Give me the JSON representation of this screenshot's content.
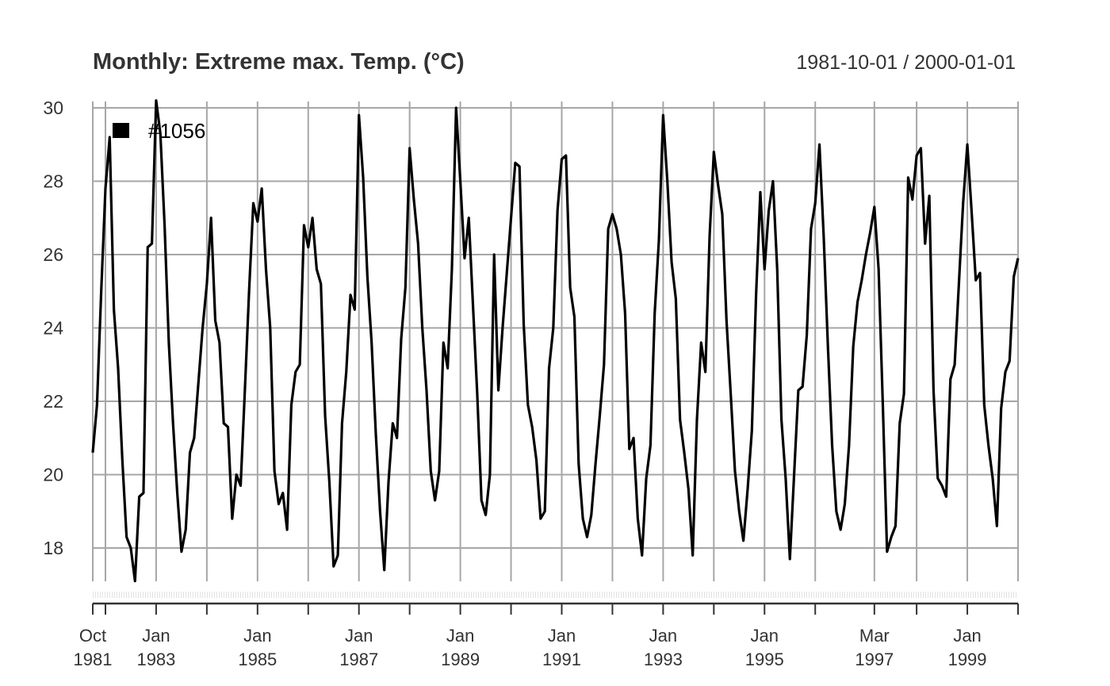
{
  "chart_data": {
    "type": "line",
    "title": "Monthly: Extreme max. Temp. (°C)",
    "date_range_label": "1981-10-01 / 2000-01-01",
    "x_start": "1981-10",
    "x_end": "2000-01",
    "xlim": [
      "1981-10",
      "2000-01"
    ],
    "ylim": [
      17,
      30
    ],
    "yticks": [
      18,
      20,
      22,
      24,
      26,
      28,
      30
    ],
    "xticks": [
      {
        "date": "1981-10",
        "label_top": "Oct",
        "label_bottom": "1981"
      },
      {
        "date": "1983-01",
        "label_top": "Jan",
        "label_bottom": "1983"
      },
      {
        "date": "1985-01",
        "label_top": "Jan",
        "label_bottom": "1985"
      },
      {
        "date": "1987-01",
        "label_top": "Jan",
        "label_bottom": "1987"
      },
      {
        "date": "1989-01",
        "label_top": "Jan",
        "label_bottom": "1989"
      },
      {
        "date": "1991-01",
        "label_top": "Jan",
        "label_bottom": "1991"
      },
      {
        "date": "1993-01",
        "label_top": "Jan",
        "label_bottom": "1993"
      },
      {
        "date": "1995-01",
        "label_top": "Jan",
        "label_bottom": "1995"
      },
      {
        "date": "1997-03",
        "label_top": "Mar",
        "label_bottom": "1997"
      },
      {
        "date": "1999-01",
        "label_top": "Jan",
        "label_bottom": "1999"
      }
    ],
    "grid_dates": [
      "1981-10",
      "1982-01",
      "1983-01",
      "1984-01",
      "1985-01",
      "1986-01",
      "1987-01",
      "1988-01",
      "1989-01",
      "1990-01",
      "1991-01",
      "1992-01",
      "1993-01",
      "1994-01",
      "1995-01",
      "1996-01",
      "1997-03",
      "1998-01",
      "1999-01",
      "2000-01"
    ],
    "legend_position": "top-left",
    "grid": true,
    "series": [
      {
        "name": "#1056",
        "color": "#000000",
        "values": [
          20.6,
          21.9,
          25.0,
          27.8,
          29.2,
          24.5,
          22.9,
          20.4,
          18.3,
          18.0,
          17.1,
          19.4,
          19.5,
          26.2,
          26.3,
          30.2,
          29.3,
          26.8,
          23.6,
          21.4,
          19.5,
          17.9,
          18.5,
          20.6,
          21.0,
          22.5,
          24.0,
          25.2,
          27.0,
          24.2,
          23.6,
          21.4,
          21.3,
          18.8,
          20.0,
          19.7,
          22.3,
          25.0,
          27.4,
          26.9,
          27.8,
          25.6,
          24.0,
          20.1,
          19.2,
          19.5,
          18.5,
          21.9,
          22.8,
          23.0,
          26.8,
          26.2,
          27.0,
          25.6,
          25.2,
          21.6,
          19.8,
          17.5,
          17.8,
          21.4,
          22.8,
          24.9,
          24.5,
          29.8,
          28.1,
          25.4,
          23.6,
          21.1,
          19.0,
          17.4,
          19.8,
          21.4,
          21.0,
          23.7,
          25.1,
          28.9,
          27.5,
          26.3,
          24.0,
          22.3,
          20.1,
          19.3,
          20.1,
          23.6,
          22.9,
          25.6,
          30.0,
          28.0,
          25.9,
          27.0,
          24.6,
          22.2,
          19.3,
          18.9,
          20.0,
          26.0,
          22.3,
          24.0,
          25.5,
          27.0,
          28.5,
          28.4,
          24.1,
          21.9,
          21.3,
          20.4,
          18.8,
          19.0,
          22.9,
          24.0,
          27.2,
          28.6,
          28.7,
          25.1,
          24.3,
          20.3,
          18.8,
          18.3,
          18.9,
          20.3,
          21.6,
          23.0,
          26.7,
          27.1,
          26.7,
          26.0,
          24.4,
          20.7,
          21.0,
          18.8,
          17.8,
          19.9,
          20.8,
          24.4,
          26.4,
          29.8,
          28.0,
          25.8,
          24.8,
          21.5,
          20.6,
          19.6,
          17.8,
          21.5,
          23.6,
          22.8,
          26.5,
          28.8,
          27.9,
          27.1,
          24.2,
          22.2,
          20.1,
          19.0,
          18.2,
          19.6,
          21.2,
          24.9,
          27.7,
          25.6,
          27.2,
          28.0,
          25.6,
          21.5,
          19.9,
          17.7,
          20.0,
          22.3,
          22.4,
          23.8,
          26.7,
          27.4,
          29.0,
          26.5,
          23.5,
          20.8,
          19.0,
          18.5,
          19.2,
          20.8,
          23.5,
          24.7,
          25.3,
          26.0,
          26.6,
          27.3,
          25.6,
          21.9,
          17.9,
          18.3,
          18.6,
          21.4,
          22.2,
          28.1,
          27.5,
          28.7,
          28.9,
          26.3,
          27.6,
          22.3,
          19.9,
          19.7,
          19.4,
          22.6,
          23.0,
          25.2,
          27.4,
          29.0,
          27.2,
          25.3,
          25.5,
          21.9,
          20.8,
          19.9,
          18.6,
          21.8,
          22.8,
          23.1,
          25.4,
          25.9
        ]
      }
    ]
  }
}
